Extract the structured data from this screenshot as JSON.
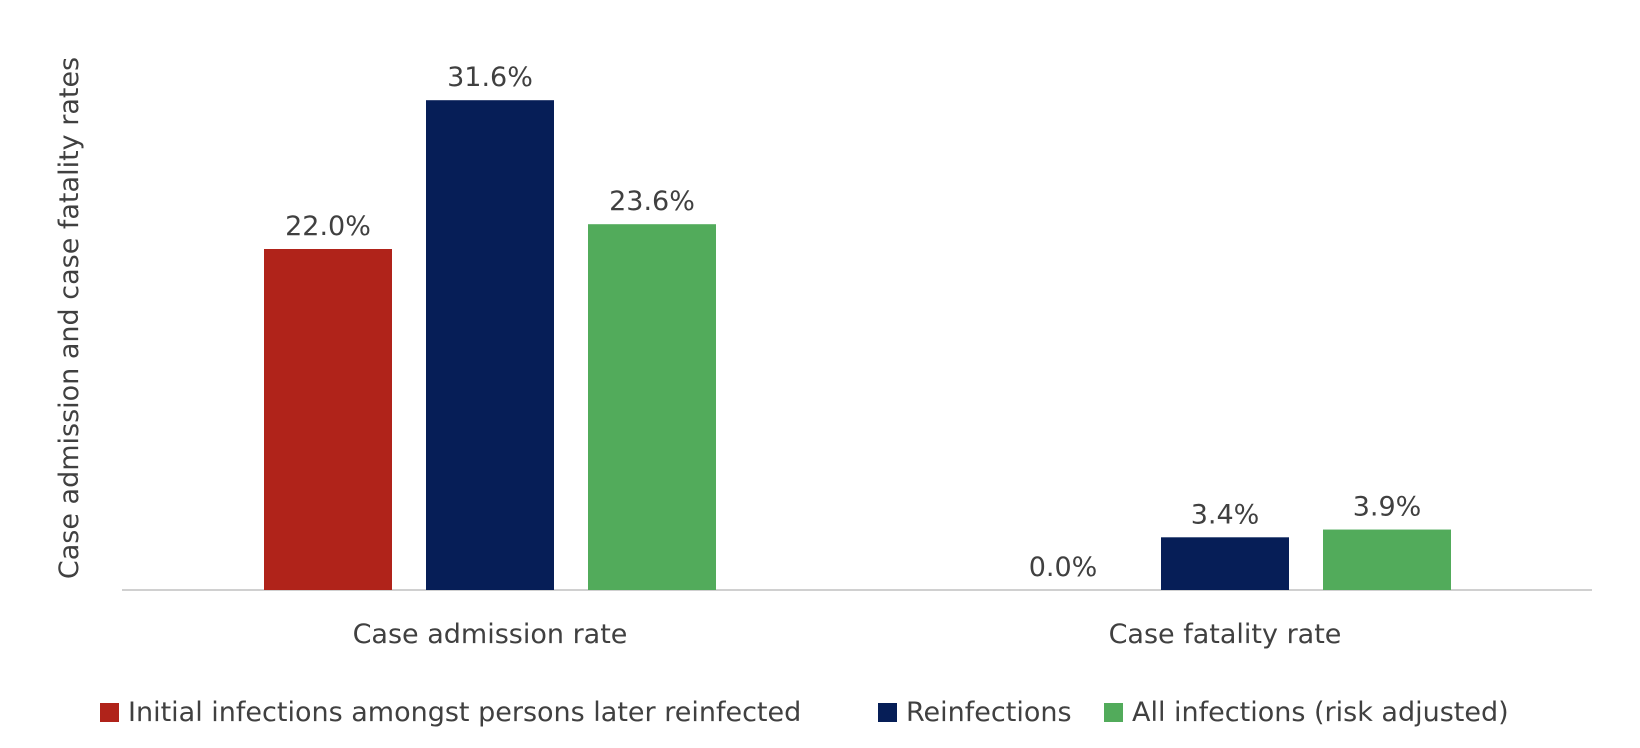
{
  "chart_data": {
    "type": "bar",
    "title": "",
    "ylabel": "Case admission and case fatality rates",
    "xlabel": "",
    "categories": [
      "Case admission rate",
      "Case fatality rate"
    ],
    "ylim": [
      0,
      35
    ],
    "grid": false,
    "legend_position": "bottom",
    "series": [
      {
        "name": "Initial infections amongst persons later reinfected",
        "color": "#B0231A",
        "values": [
          22.0,
          0.0
        ],
        "labels": [
          "22.0%",
          "0.0%"
        ]
      },
      {
        "name": "Reinfections",
        "color": "#061E57",
        "values": [
          31.6,
          3.4
        ],
        "labels": [
          "31.6%",
          "3.4%"
        ]
      },
      {
        "name": "All infections (risk adjusted)",
        "color": "#52AB5B",
        "values": [
          23.6,
          3.9
        ],
        "labels": [
          "23.6%",
          "3.9%"
        ]
      }
    ]
  }
}
